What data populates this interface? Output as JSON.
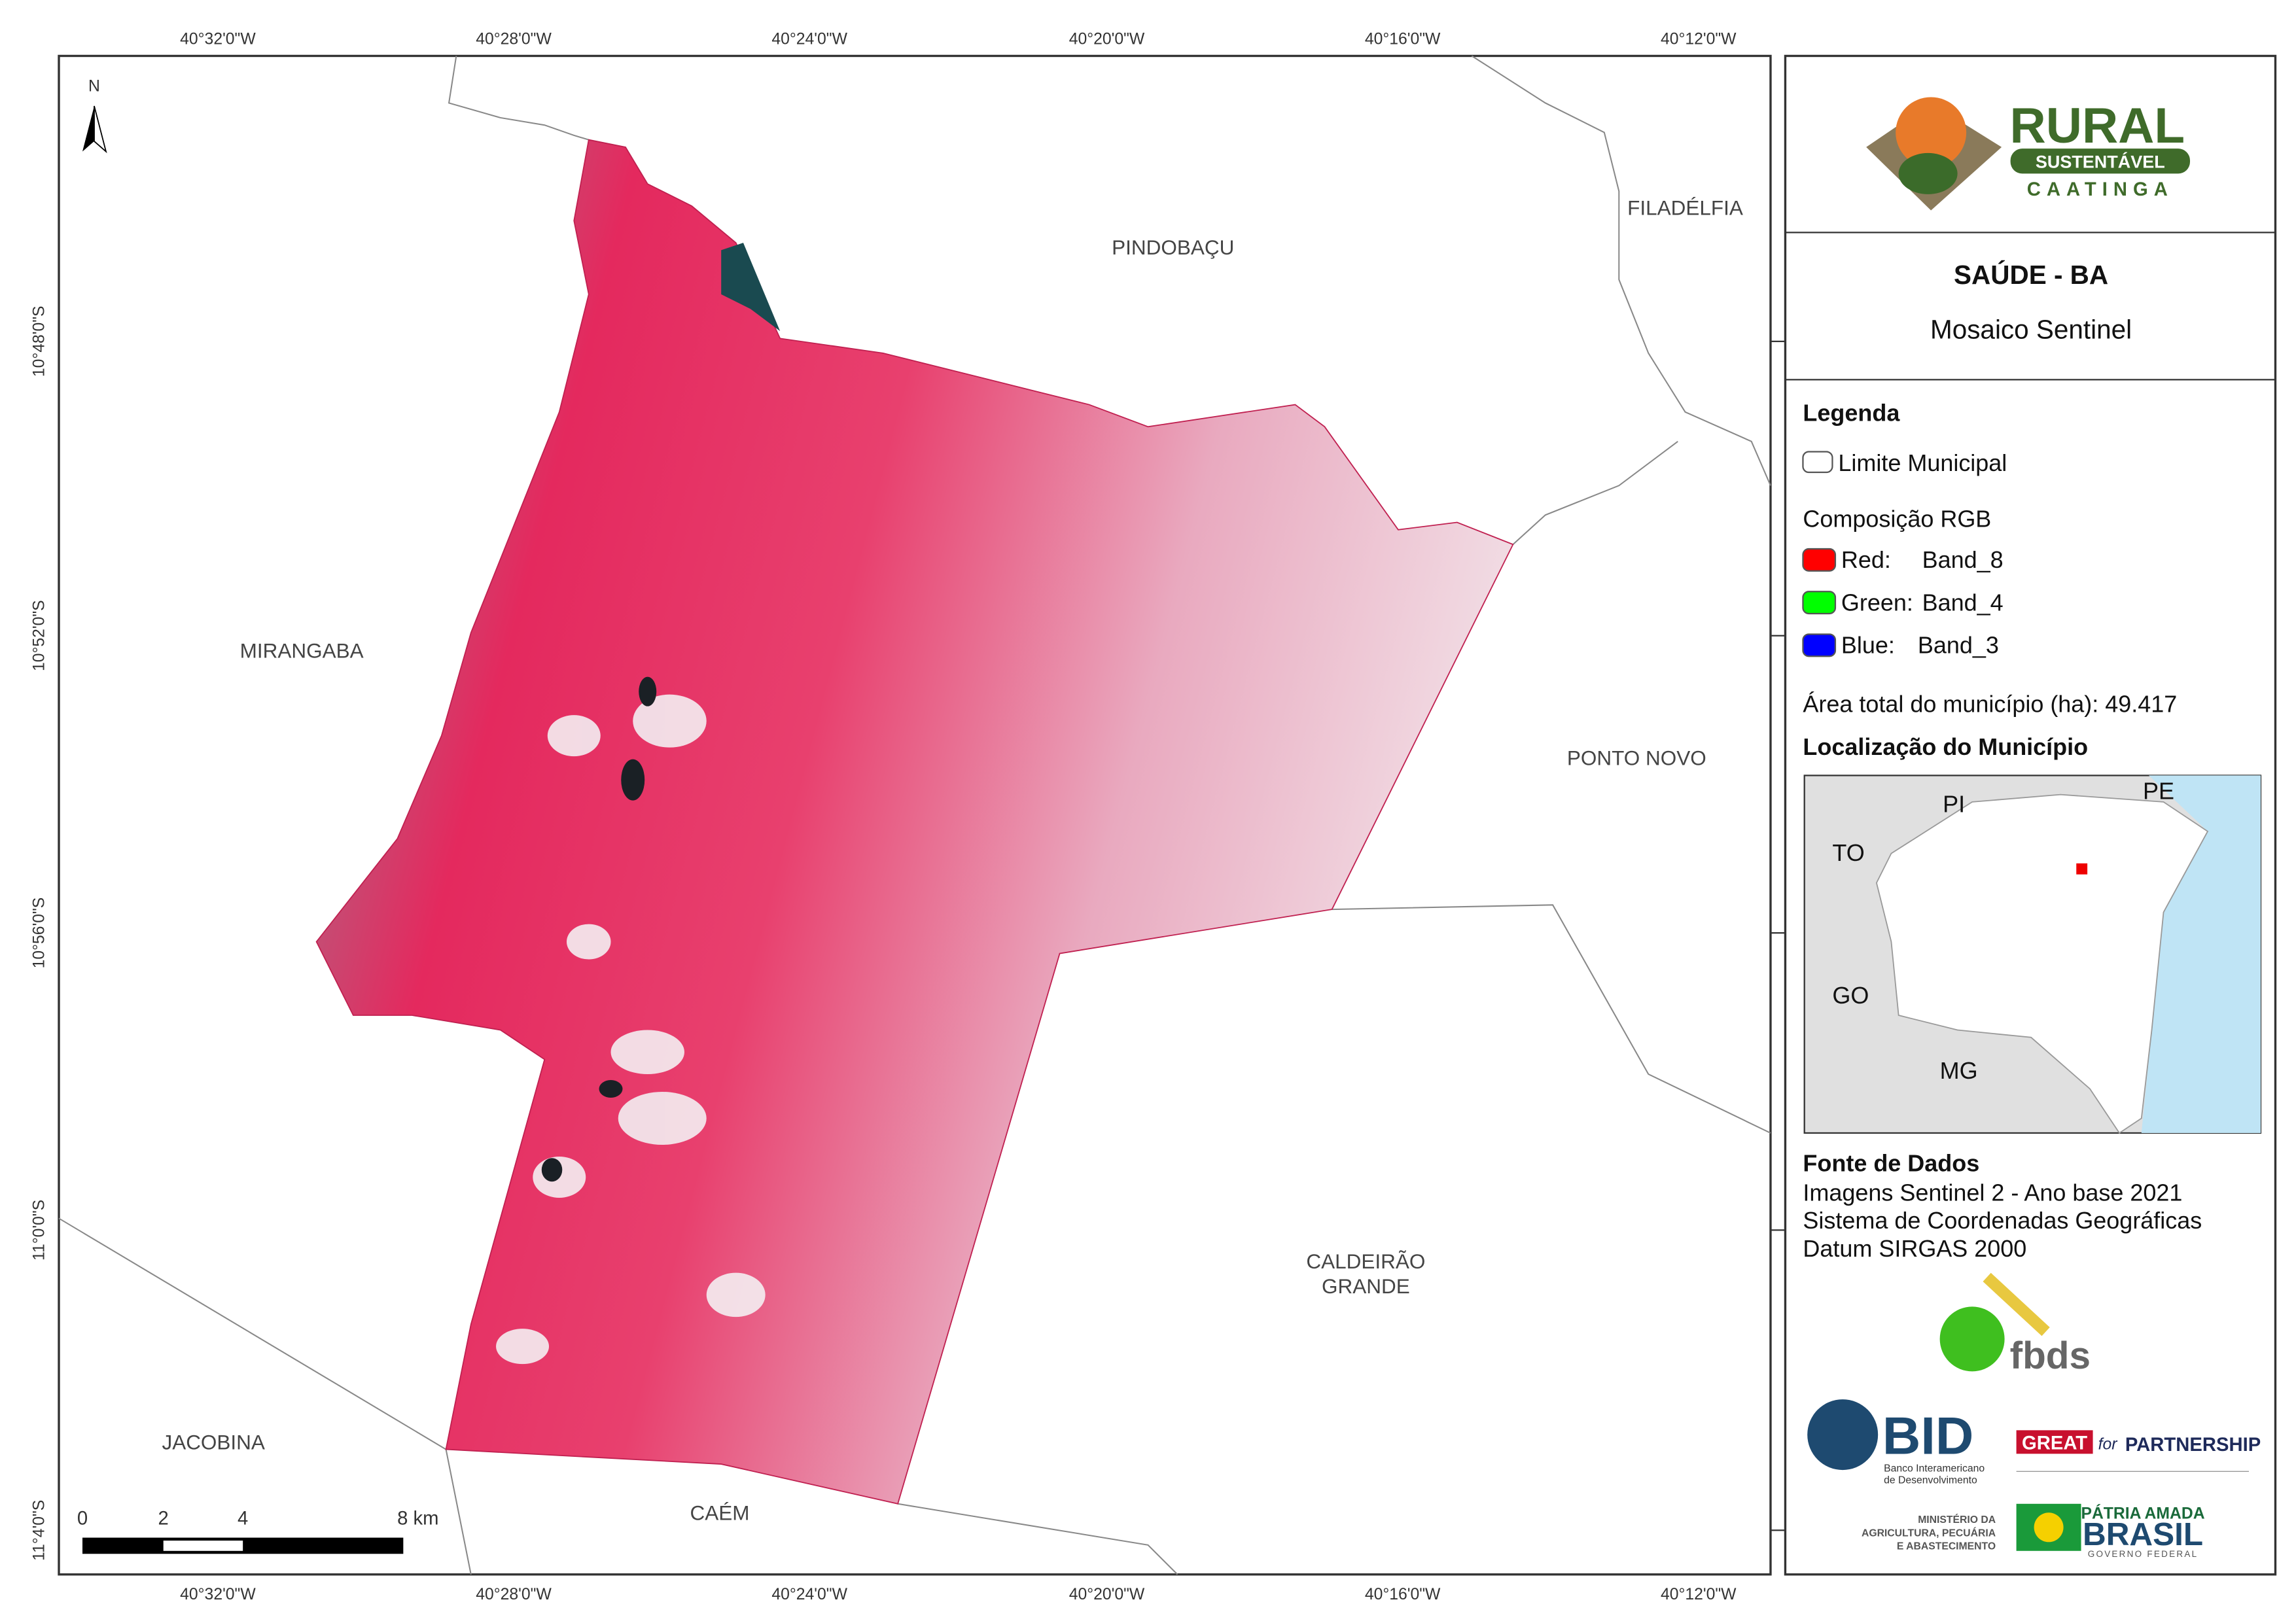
{
  "map": {
    "top_coords": [
      "40°32'0\"W",
      "40°28'0\"W",
      "40°24'0\"W",
      "40°20'0\"W",
      "40°16'0\"W",
      "40°12'0\"W"
    ],
    "bottom_coords": [
      "40°32'0\"W",
      "40°28'0\"W",
      "40°24'0\"W",
      "40°20'0\"W",
      "40°16'0\"W",
      "40°12'0\"W"
    ],
    "left_coords": [
      "10°48'0\"S",
      "10°52'0\"S",
      "10°56'0\"S",
      "11°0'0\"S",
      "11°4'0\"S"
    ],
    "north": "N",
    "places": [
      "PINDOBAÇU",
      "FILADÉLFIA",
      "MIRANGABA",
      "PONTO NOVO",
      "CALDEIRÃO",
      "GRANDE",
      "JACOBINA",
      "CAÉM"
    ],
    "scale": [
      "0",
      "2",
      "4",
      "8 km"
    ]
  },
  "panel": {
    "logo": {
      "title": "RURAL",
      "subtitle": "SUSTENTÁVEL",
      "region": "CAATINGA"
    },
    "title": "SAÚDE - BA",
    "subtitle": "Mosaico Sentinel",
    "legend": {
      "heading": "Legenda",
      "boundary": "Limite Municipal",
      "composition": "Composição RGB",
      "bands": [
        [
          "Red:",
          "Band_8"
        ],
        [
          "Green:",
          "Band_4"
        ],
        [
          "Blue:",
          "Band_3"
        ]
      ],
      "area": "Área total do município (ha): 49.417"
    },
    "location": {
      "heading": "Localização do Município",
      "states": [
        "PI",
        "PE",
        "TO",
        "GO",
        "MG"
      ]
    },
    "sources": {
      "heading": "Fonte de Dados",
      "lines": [
        "Imagens Sentinel 2 - Ano base 2021",
        "Sistema de Coordenadas Geográficas",
        "Datum SIRGAS 2000"
      ]
    },
    "partners": {
      "fbds": "fbds",
      "bid": "BID",
      "bid_name": [
        "Banco Interamericano",
        "de Desenvolvimento"
      ],
      "great": [
        "GREAT",
        "for",
        "PARTNERSHIP"
      ],
      "ministry": [
        "MINISTÉRIO DA",
        "AGRICULTURA, PECUÁRIA",
        "E ABASTECIMENTO"
      ],
      "brasil": [
        "PÁTRIA AMADA",
        "BRASIL",
        "GOVERNO FEDERAL"
      ]
    }
  }
}
